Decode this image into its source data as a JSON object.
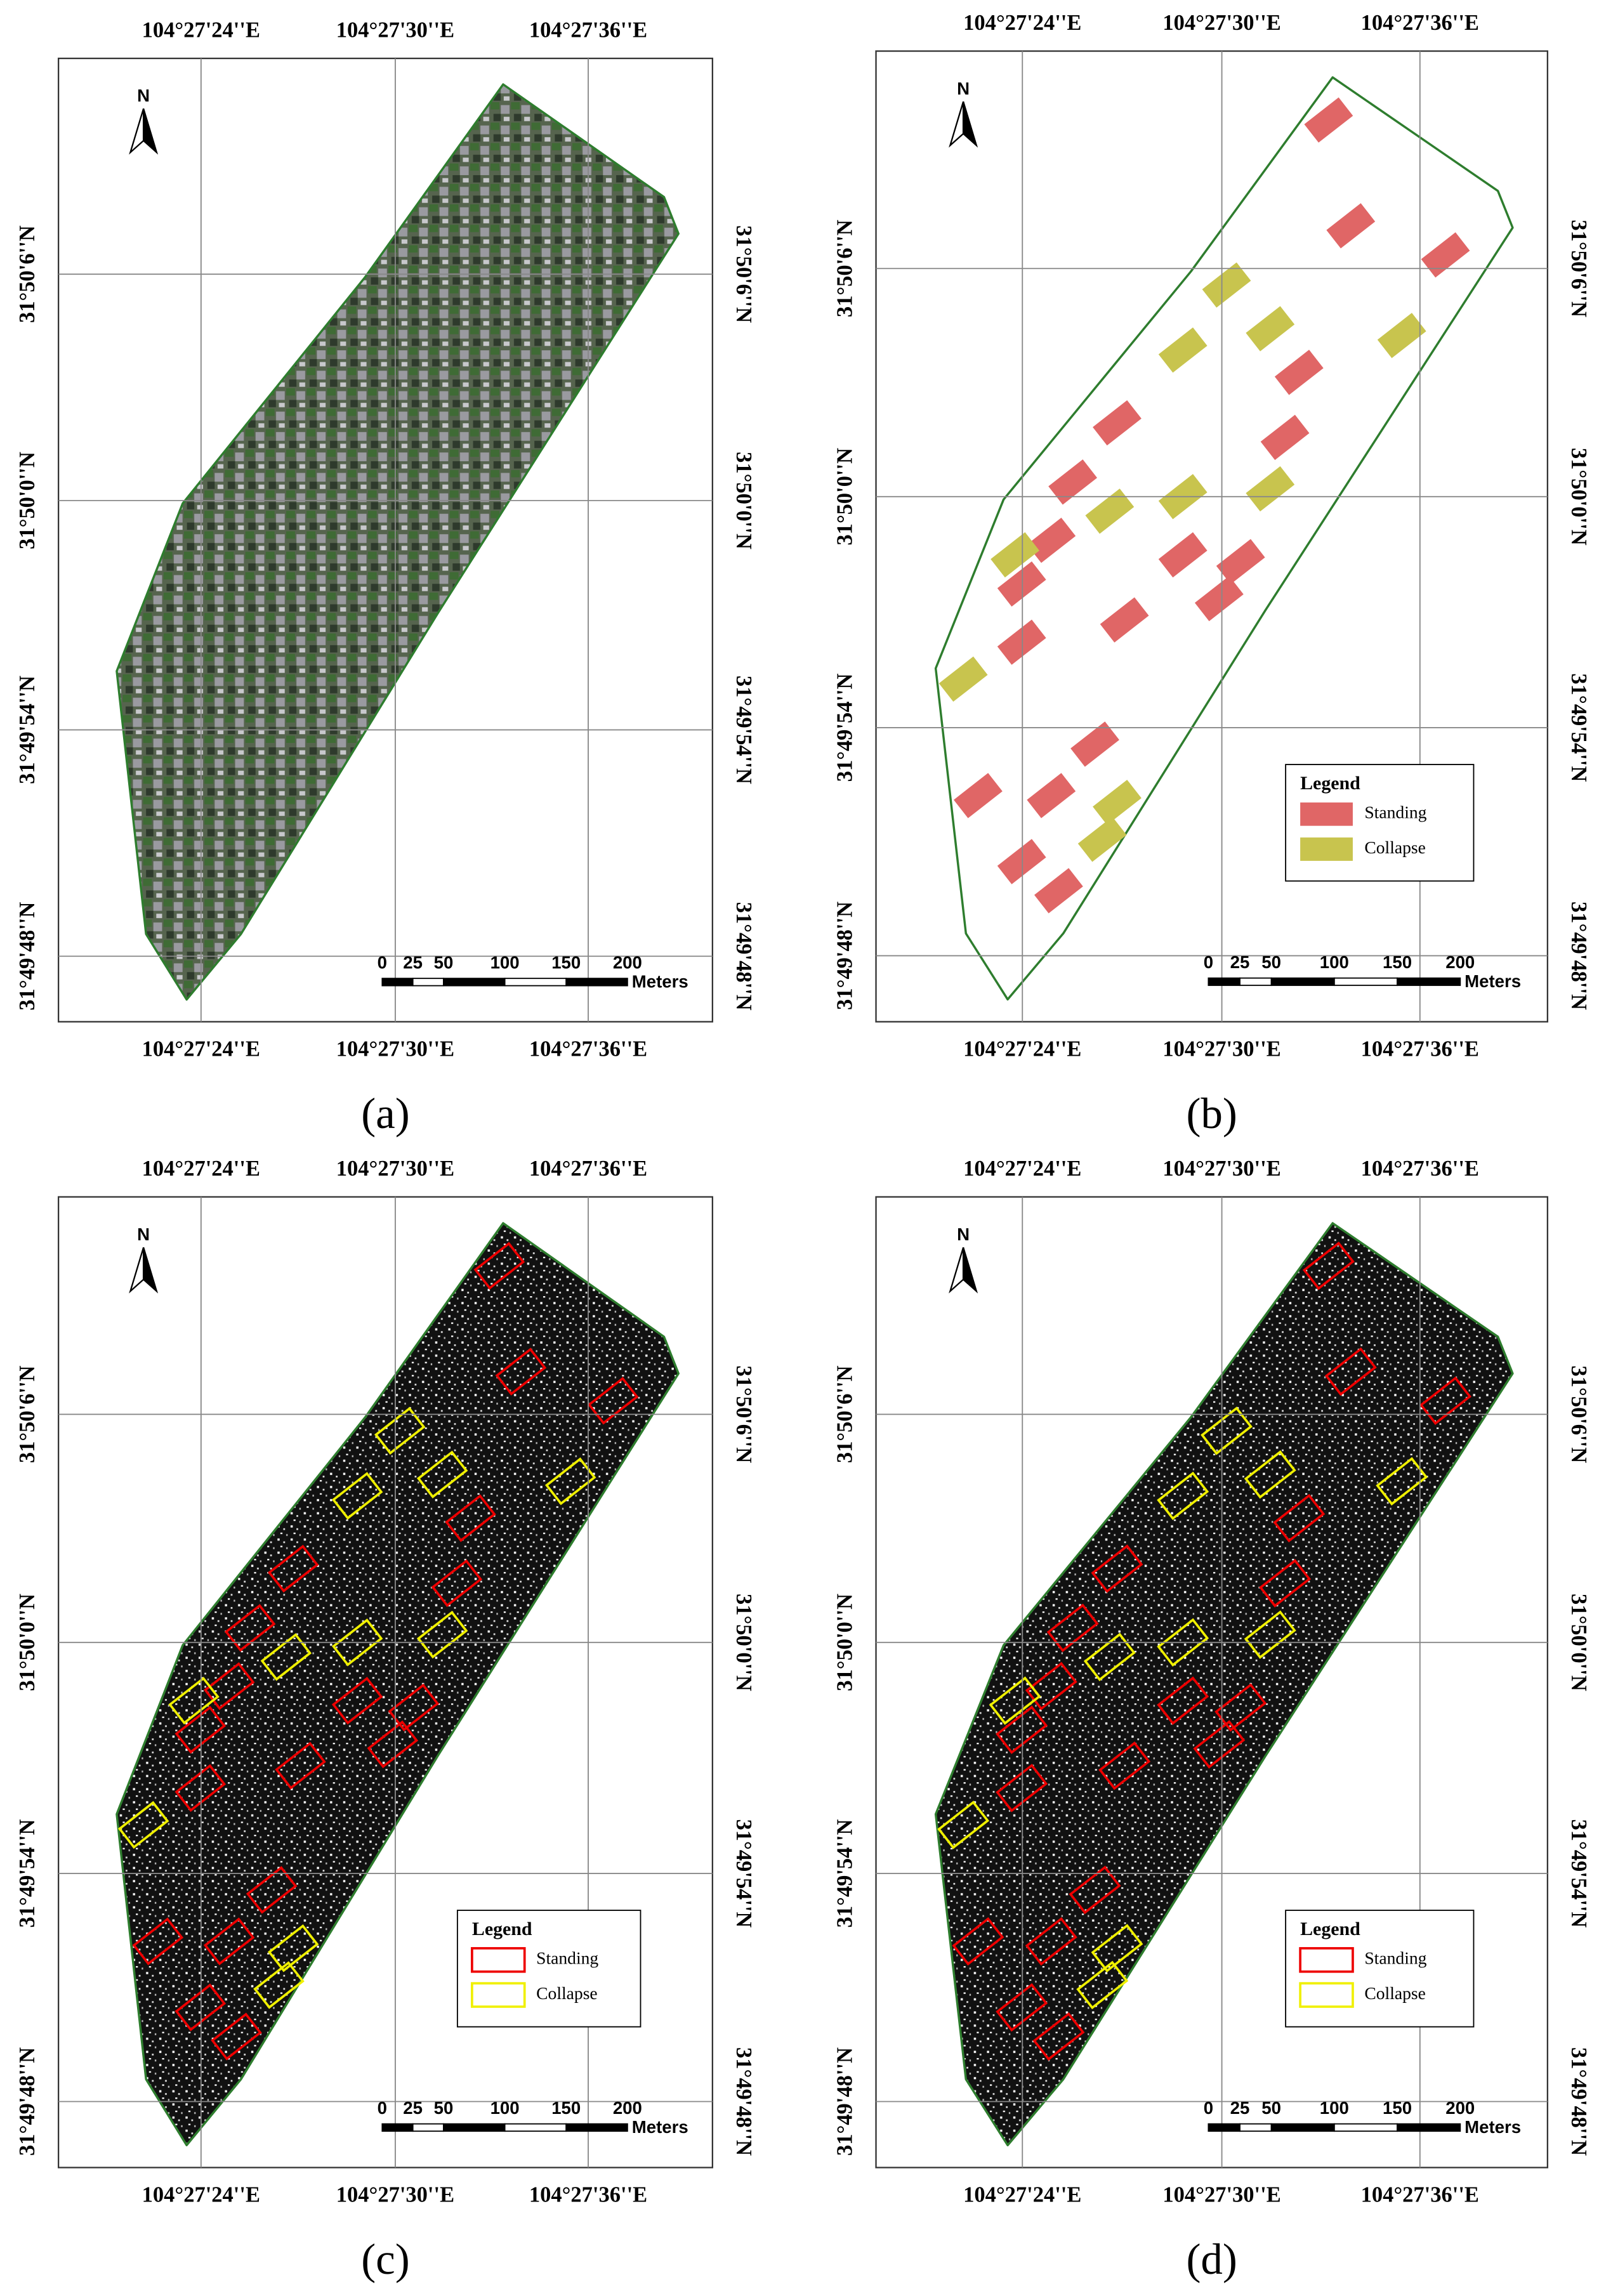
{
  "panels": [
    {
      "label": "(a)",
      "north": "N",
      "top_labels": [
        "104°27'24''E",
        "104°27'30''E",
        "104°27'36''E"
      ],
      "bottom_labels": [
        "104°27'24''E",
        "104°27'30''E",
        "104°27'36''E"
      ],
      "left_labels": [
        "31°50'6''N",
        "31°50'0''N",
        "31°49'54''N",
        "31°49'48''N"
      ],
      "right_labels": [
        "31°50'6''N",
        "31°50'0''N",
        "31°49'54''N",
        "31°49'48''N"
      ],
      "scale": {
        "labels": [
          "0",
          "25",
          "50",
          "100",
          "150",
          "200"
        ],
        "unit": "Meters"
      }
    },
    {
      "label": "(b)",
      "north": "N",
      "top_labels": [
        "104°27'24''E",
        "104°27'30''E",
        "104°27'36''E"
      ],
      "bottom_labels": [
        "104°27'24''E",
        "104°27'30''E",
        "104°27'36''E"
      ],
      "left_labels": [
        "31°50'6''N",
        "31°50'0''N",
        "31°49'54''N",
        "31°49'48''N"
      ],
      "right_labels": [
        "31°50'6''N",
        "31°50'0''N",
        "31°49'54''N",
        "31°49'48''N"
      ],
      "scale": {
        "labels": [
          "0",
          "25",
          "50",
          "100",
          "150",
          "200"
        ],
        "unit": "Meters"
      },
      "legend": {
        "title": "Legend",
        "items": [
          "Standing",
          "Collapse"
        ]
      }
    },
    {
      "label": "(c)",
      "north": "N",
      "top_labels": [
        "104°27'24''E",
        "104°27'30''E",
        "104°27'36''E"
      ],
      "bottom_labels": [
        "104°27'24''E",
        "104°27'30''E",
        "104°27'36''E"
      ],
      "left_labels": [
        "31°50'6''N",
        "31°50'0''N",
        "31°49'54''N",
        "31°49'48''N"
      ],
      "right_labels": [
        "31°50'6''N",
        "31°50'0''N",
        "31°49'54''N",
        "31°49'48''N"
      ],
      "scale": {
        "labels": [
          "0",
          "25",
          "50",
          "100",
          "150",
          "200"
        ],
        "unit": "Meters"
      },
      "legend": {
        "title": "Legend",
        "items": [
          "Standing",
          "Collapse"
        ]
      }
    },
    {
      "label": "(d)",
      "north": "N",
      "top_labels": [
        "104°27'24''E",
        "104°27'30''E",
        "104°27'36''E"
      ],
      "bottom_labels": [
        "104°27'24''E",
        "104°27'30''E",
        "104°27'36''E"
      ],
      "left_labels": [
        "31°50'6''N",
        "31°50'0''N",
        "31°49'54''N",
        "31°49'48''N"
      ],
      "right_labels": [
        "31°50'6''N",
        "31°50'0''N",
        "31°49'54''N",
        "31°49'48''N"
      ],
      "scale": {
        "labels": [
          "0",
          "25",
          "50",
          "100",
          "150",
          "200"
        ],
        "unit": "Meters"
      },
      "legend": {
        "title": "Legend",
        "items": [
          "Standing",
          "Collapse"
        ]
      }
    }
  ]
}
